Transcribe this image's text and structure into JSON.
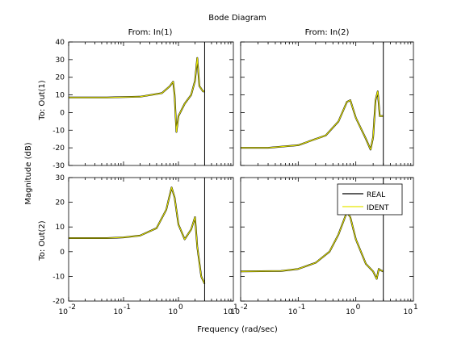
{
  "title": "Bode Diagram",
  "xlabel": "Frequency  (rad/sec)",
  "ylabel": "Magnitude (dB)",
  "col_titles": [
    "From: In(1)",
    "From: In(2)"
  ],
  "row_titles": [
    "To: Out(1)",
    "To: Out(2)"
  ],
  "colors": {
    "real": "#000000",
    "ident": "#e6e600",
    "marker": "#000000"
  },
  "chart_data": {
    "type": "line",
    "x_scale": "log",
    "xlim": [
      0.01,
      10
    ],
    "xlim_ticks": [
      "10",
      "-2",
      "10",
      "-1",
      "10",
      "0",
      "10",
      "1"
    ],
    "x_tick_values": [
      0.01,
      0.1,
      1,
      10
    ],
    "vertical_marker_x": 3.0,
    "legend": {
      "entries": [
        "REAL",
        "IDENT"
      ],
      "placement": "top-right of bottom-right panel"
    },
    "panels": [
      {
        "id": "out1-in1",
        "row": 0,
        "col": 0,
        "ylim": [
          -30,
          40
        ],
        "y_ticks": [
          -30,
          -20,
          -10,
          0,
          10,
          20,
          30,
          40
        ],
        "series": [
          {
            "name": "REAL",
            "x": [
              0.01,
              0.05,
              0.2,
              0.5,
              0.7,
              0.8,
              0.85,
              0.92,
              1.0,
              1.3,
              1.7,
              2.0,
              2.2,
              2.4,
              2.8,
              3.0
            ],
            "y": [
              8.5,
              8.5,
              9.0,
              11.0,
              15.0,
              17.5,
              10.0,
              -11.0,
              -2.0,
              5.0,
              10.0,
              18.0,
              31.0,
              15.0,
              12.0,
              12.0
            ]
          },
          {
            "name": "IDENT",
            "x": [
              0.01,
              0.05,
              0.2,
              0.5,
              0.7,
              0.8,
              0.85,
              0.92,
              1.0,
              1.3,
              1.7,
              2.0,
              2.2,
              2.4,
              2.8,
              3.0
            ],
            "y": [
              8.5,
              8.5,
              9.0,
              11.0,
              15.0,
              17.5,
              10.0,
              -11.0,
              -2.0,
              5.0,
              10.0,
              18.0,
              31.0,
              15.0,
              12.0,
              12.0
            ]
          }
        ]
      },
      {
        "id": "out1-in2",
        "row": 0,
        "col": 1,
        "ylim": [
          -30,
          40
        ],
        "y_ticks": [
          -30,
          -20,
          -10,
          0,
          10,
          20,
          30,
          40
        ],
        "series": [
          {
            "name": "REAL",
            "x": [
              0.01,
              0.03,
              0.1,
              0.3,
              0.5,
              0.7,
              0.8,
              1.0,
              1.5,
              1.8,
              2.0,
              2.2,
              2.4,
              2.6,
              3.0
            ],
            "y": [
              -20.0,
              -20.0,
              -18.5,
              -13.0,
              -5.0,
              6.0,
              7.0,
              -3.0,
              -15.0,
              -21.0,
              -14.0,
              7.0,
              12.0,
              -2.0,
              -2.0
            ]
          },
          {
            "name": "IDENT",
            "x": [
              0.01,
              0.03,
              0.1,
              0.3,
              0.5,
              0.7,
              0.8,
              1.0,
              1.5,
              1.8,
              2.0,
              2.2,
              2.4,
              2.6,
              3.0
            ],
            "y": [
              -20.0,
              -20.0,
              -18.5,
              -13.0,
              -5.0,
              6.0,
              7.0,
              -3.0,
              -15.0,
              -21.0,
              -14.0,
              7.0,
              12.0,
              -2.0,
              -2.0
            ]
          }
        ]
      },
      {
        "id": "out2-in1",
        "row": 1,
        "col": 0,
        "ylim": [
          -20,
          30
        ],
        "y_ticks": [
          -20,
          -10,
          0,
          10,
          20,
          30
        ],
        "series": [
          {
            "name": "REAL",
            "x": [
              0.01,
              0.05,
              0.1,
              0.2,
              0.4,
              0.6,
              0.75,
              0.85,
              1.0,
              1.3,
              1.7,
              2.0,
              2.2,
              2.6,
              3.0
            ],
            "y": [
              5.5,
              5.5,
              5.8,
              6.5,
              9.5,
              17.0,
              26.0,
              22.0,
              11.0,
              5.0,
              9.0,
              14.0,
              2.0,
              -10.0,
              -13.0
            ]
          },
          {
            "name": "IDENT",
            "x": [
              0.01,
              0.05,
              0.1,
              0.2,
              0.4,
              0.6,
              0.75,
              0.85,
              1.0,
              1.3,
              1.7,
              2.0,
              2.2,
              2.6,
              3.0
            ],
            "y": [
              5.5,
              5.5,
              5.8,
              6.5,
              9.5,
              17.0,
              26.0,
              22.0,
              11.0,
              5.0,
              9.0,
              14.0,
              2.0,
              -10.0,
              -13.0
            ]
          }
        ]
      },
      {
        "id": "out2-in2",
        "row": 1,
        "col": 1,
        "ylim": [
          -20,
          30
        ],
        "y_ticks": [
          -20,
          -10,
          0,
          10,
          20,
          30
        ],
        "series": [
          {
            "name": "REAL",
            "x": [
              0.01,
              0.05,
              0.1,
              0.2,
              0.35,
              0.5,
              0.7,
              0.8,
              1.0,
              1.5,
              2.0,
              2.3,
              2.5,
              2.7,
              3.0
            ],
            "y": [
              -8.0,
              -7.8,
              -7.0,
              -4.5,
              0.0,
              7.0,
              16.0,
              14.0,
              5.0,
              -5.0,
              -8.0,
              -11.0,
              -7.0,
              -7.5,
              -8.0
            ]
          },
          {
            "name": "IDENT",
            "x": [
              0.01,
              0.05,
              0.1,
              0.2,
              0.35,
              0.5,
              0.7,
              0.8,
              1.0,
              1.5,
              2.0,
              2.3,
              2.5,
              2.7,
              3.0
            ],
            "y": [
              -8.0,
              -7.8,
              -7.0,
              -4.5,
              0.0,
              7.0,
              16.0,
              14.0,
              5.0,
              -5.0,
              -8.0,
              -11.0,
              -7.0,
              -7.5,
              -8.0
            ]
          }
        ]
      }
    ]
  }
}
